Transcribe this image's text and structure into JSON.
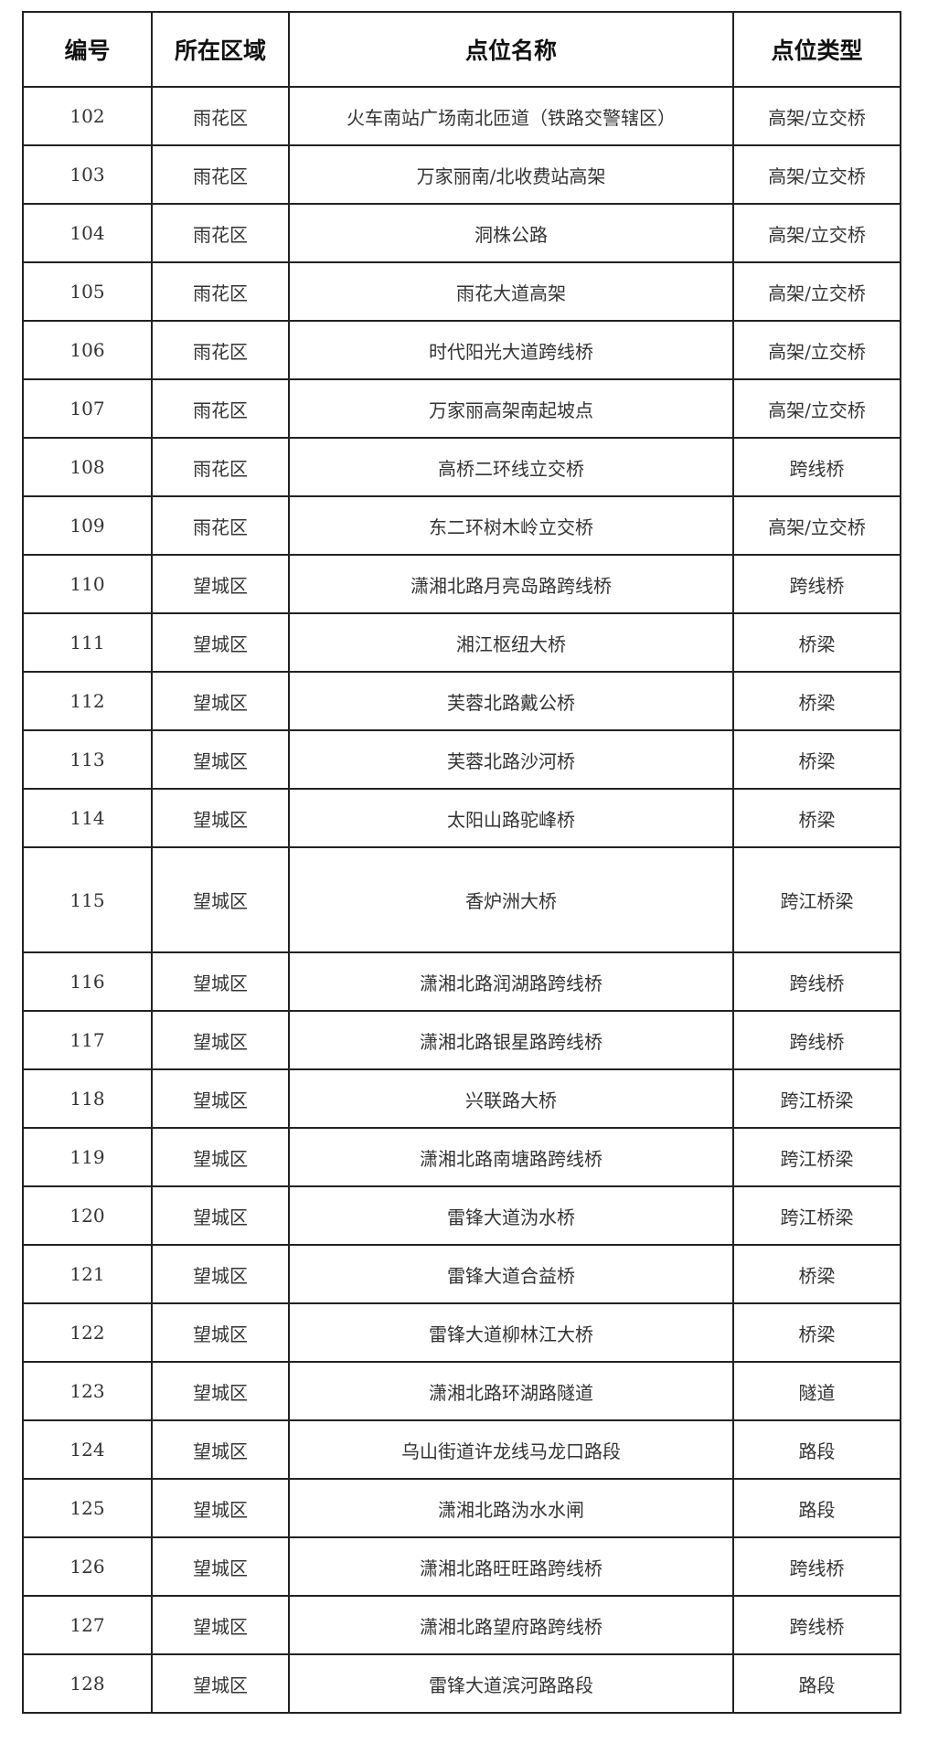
{
  "table": {
    "headers": [
      "编号",
      "所在区域",
      "点位名称",
      "点位类型"
    ],
    "rows": [
      [
        "102",
        "雨花区",
        "火车南站广场南北匝道（铁路交警辖区）",
        "高架/立交桥"
      ],
      [
        "103",
        "雨花区",
        "万家丽南/北收费站高架",
        "高架/立交桥"
      ],
      [
        "104",
        "雨花区",
        "洞株公路",
        "高架/立交桥"
      ],
      [
        "105",
        "雨花区",
        "雨花大道高架",
        "高架/立交桥"
      ],
      [
        "106",
        "雨花区",
        "时代阳光大道跨线桥",
        "高架/立交桥"
      ],
      [
        "107",
        "雨花区",
        "万家丽高架南起坡点",
        "高架/立交桥"
      ],
      [
        "108",
        "雨花区",
        "高桥二环线立交桥",
        "跨线桥"
      ],
      [
        "109",
        "雨花区",
        "东二环树木岭立交桥",
        "高架/立交桥"
      ],
      [
        "110",
        "望城区",
        "潇湘北路月亮岛路跨线桥",
        "跨线桥"
      ],
      [
        "111",
        "望城区",
        "湘江枢纽大桥",
        "桥梁"
      ],
      [
        "112",
        "望城区",
        "芙蓉北路戴公桥",
        "桥梁"
      ],
      [
        "113",
        "望城区",
        "芙蓉北路沙河桥",
        "桥梁"
      ],
      [
        "114",
        "望城区",
        "太阳山路驼峰桥",
        "桥梁"
      ],
      [
        "115",
        "望城区",
        "香炉洲大桥",
        "跨江桥梁"
      ],
      [
        "116",
        "望城区",
        "潇湘北路润湖路跨线桥",
        "跨线桥"
      ],
      [
        "117",
        "望城区",
        "潇湘北路银星路跨线桥",
        "跨线桥"
      ],
      [
        "118",
        "望城区",
        "兴联路大桥",
        "跨江桥梁"
      ],
      [
        "119",
        "望城区",
        "潇湘北路南塘路跨线桥",
        "跨江桥梁"
      ],
      [
        "120",
        "望城区",
        "雷锋大道沩水桥",
        "跨江桥梁"
      ],
      [
        "121",
        "望城区",
        "雷锋大道合益桥",
        "桥梁"
      ],
      [
        "122",
        "望城区",
        "雷锋大道柳林江大桥",
        "桥梁"
      ],
      [
        "123",
        "望城区",
        "潇湘北路环湖路隧道",
        "隧道"
      ],
      [
        "124",
        "望城区",
        "乌山街道许龙线马龙口路段",
        "路段"
      ],
      [
        "125",
        "望城区",
        "潇湘北路沩水水闸",
        "路段"
      ],
      [
        "126",
        "望城区",
        "潇湘北路旺旺路跨线桥",
        "跨线桥"
      ],
      [
        "127",
        "望城区",
        "潇湘北路望府路跨线桥",
        "跨线桥"
      ],
      [
        "128",
        "望城区",
        "雷锋大道滨河路路段",
        "路段"
      ]
    ]
  }
}
